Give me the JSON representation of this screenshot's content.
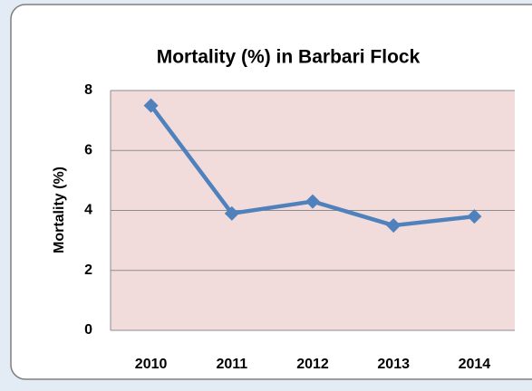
{
  "chart_data": {
    "type": "line",
    "title": "Mortality (%) in Barbari Flock",
    "y_label": "Mortality (%)",
    "categories": [
      "2010",
      "2011",
      "2012",
      "2013",
      "2014"
    ],
    "series": [
      {
        "name": "Mortality (%)",
        "color": "#4f81bd",
        "values": [
          7.5,
          3.9,
          4.3,
          3.5,
          3.8
        ]
      }
    ],
    "ylim": [
      0,
      8
    ],
    "yticks": [
      0,
      2,
      4,
      6,
      8
    ],
    "grid": true
  }
}
